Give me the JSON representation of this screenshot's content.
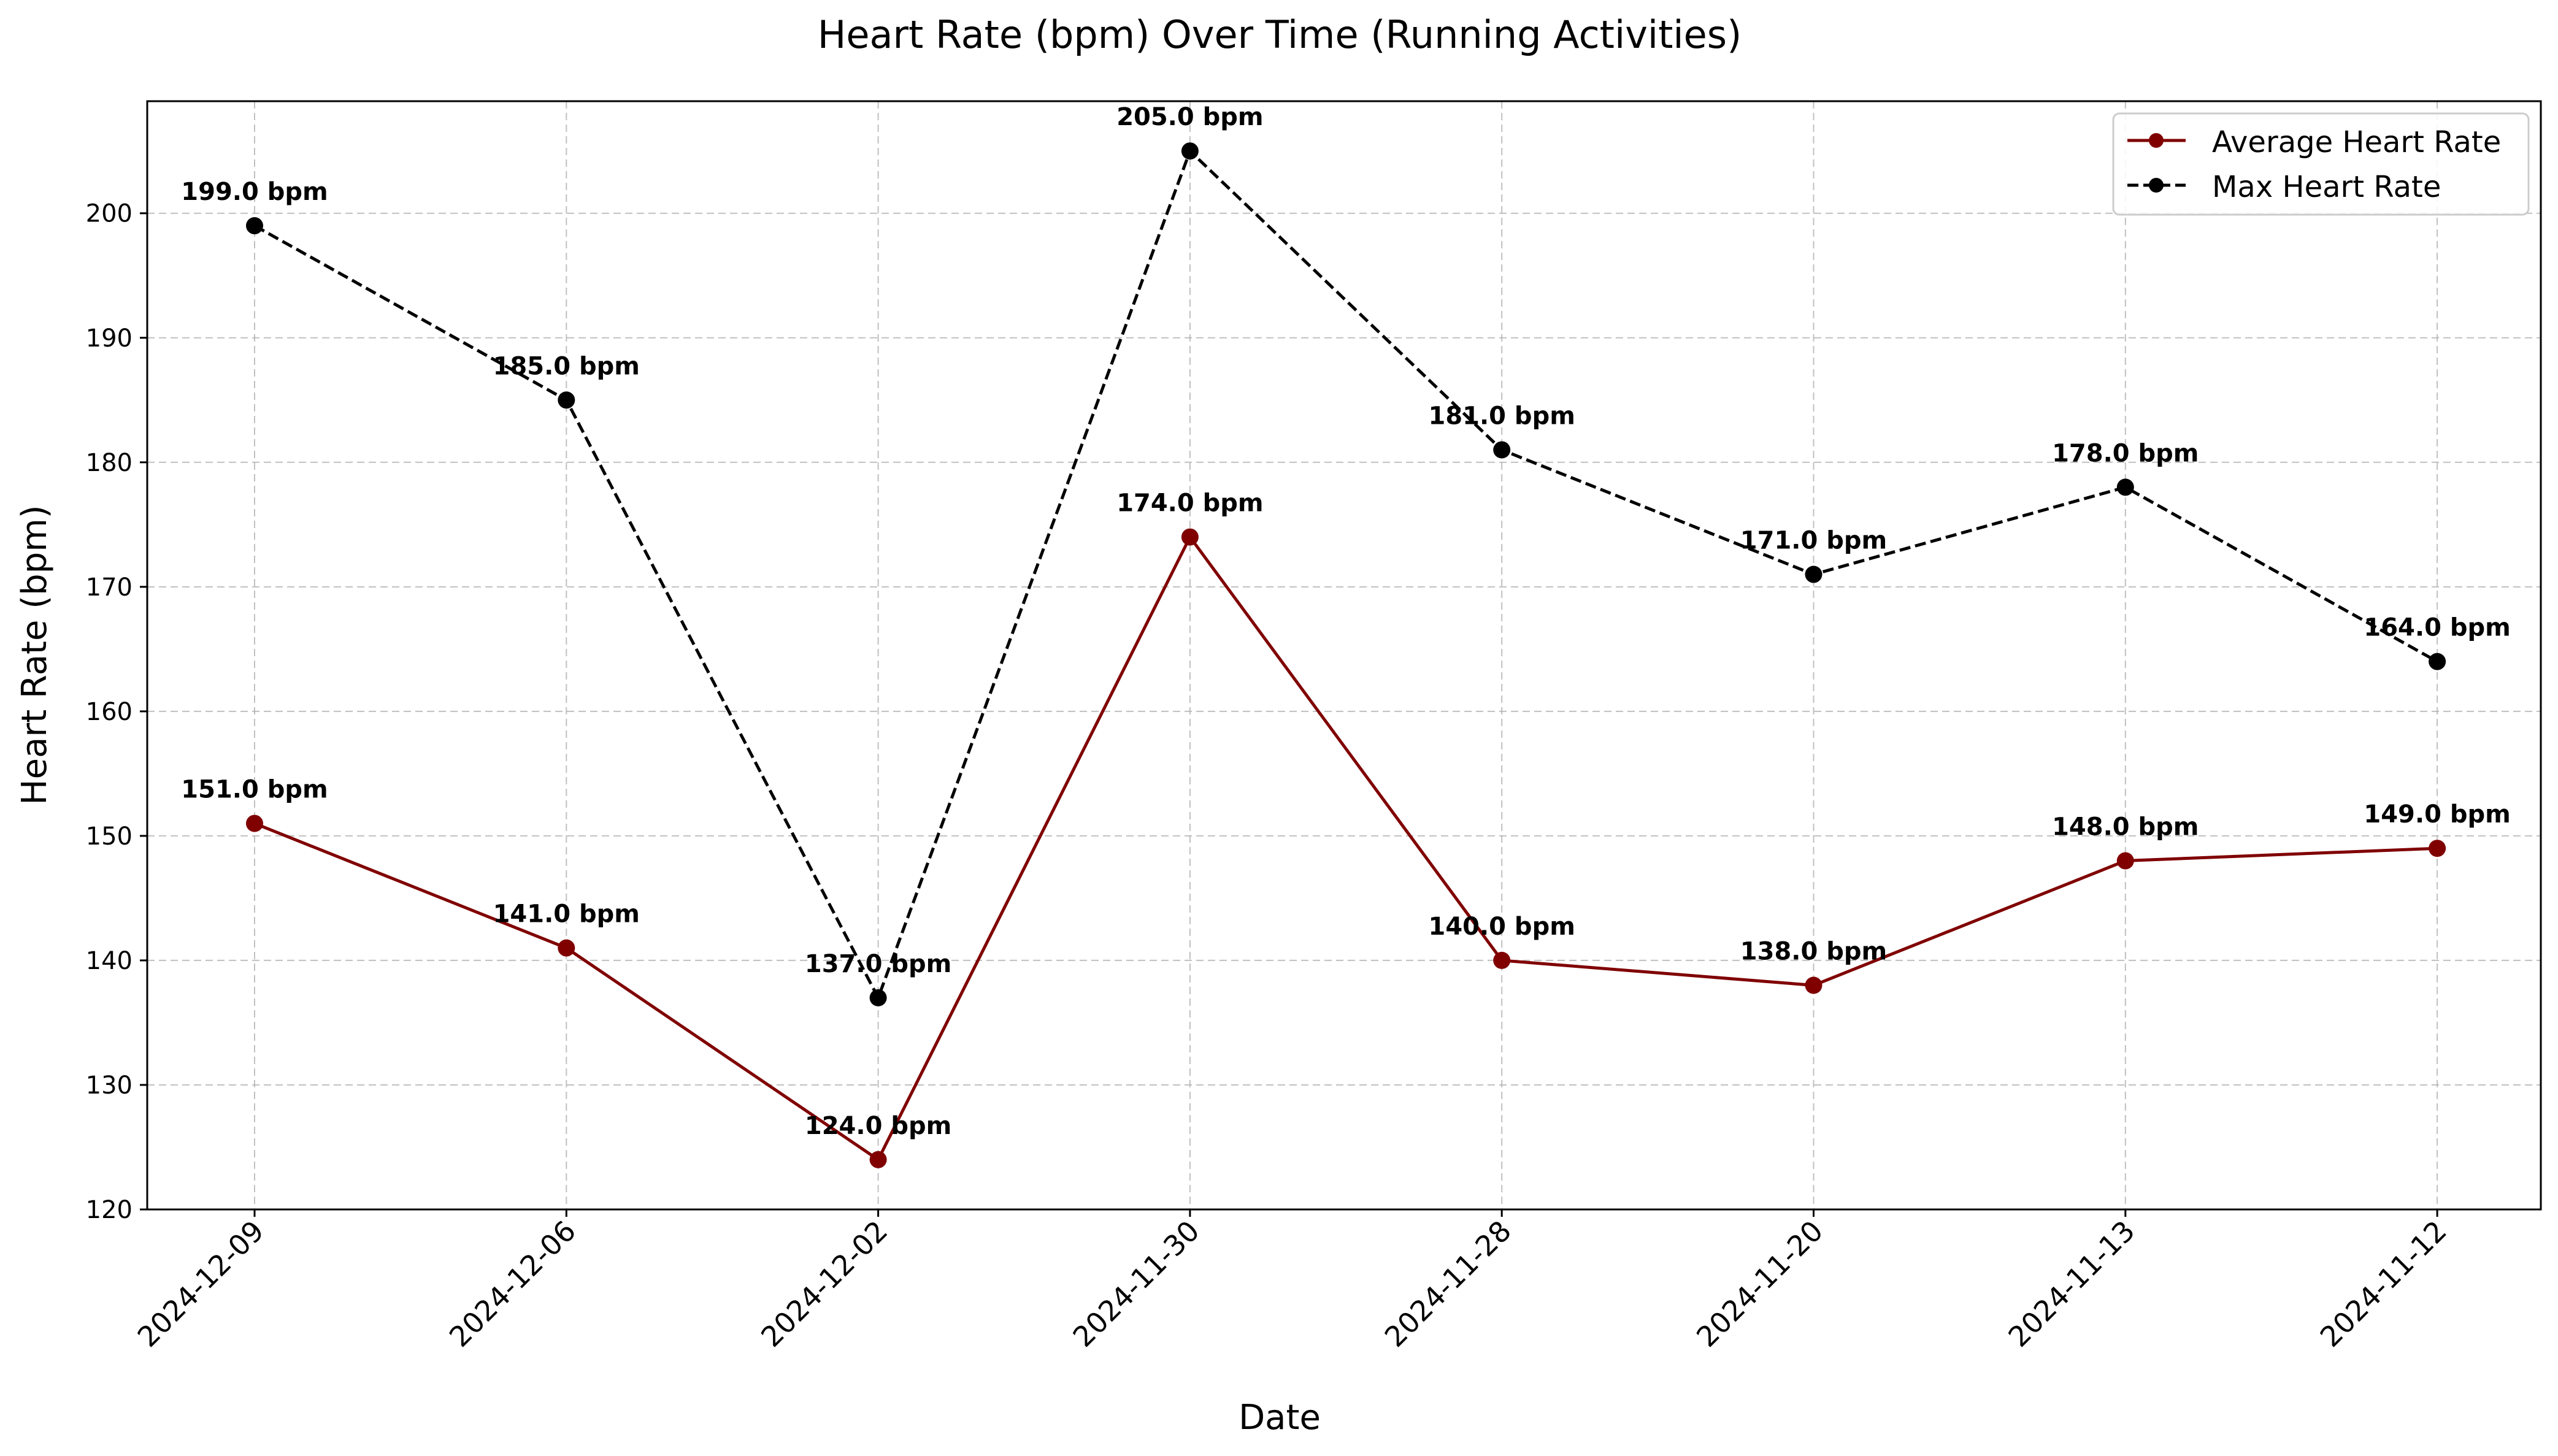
{
  "chart_data": {
    "type": "line",
    "title": "Heart Rate (bpm) Over Time (Running Activities)",
    "xlabel": "Date",
    "ylabel": "Heart Rate (bpm)",
    "categories": [
      "2024-12-09",
      "2024-12-06",
      "2024-12-02",
      "2024-11-30",
      "2024-11-28",
      "2024-11-20",
      "2024-11-13",
      "2024-11-12"
    ],
    "ylim": [
      120,
      209
    ],
    "yticks": [
      120,
      130,
      140,
      150,
      160,
      170,
      180,
      190,
      200
    ],
    "grid": true,
    "legend_position": "top-right",
    "value_suffix": " bpm",
    "series": [
      {
        "name": "Average Heart Rate",
        "values": [
          151,
          141,
          124,
          174,
          140,
          138,
          148,
          149
        ],
        "labels": [
          "151.0 bpm",
          "141.0 bpm",
          "124.0 bpm",
          "174.0 bpm",
          "140.0 bpm",
          "138.0 bpm",
          "148.0 bpm",
          "149.0 bpm"
        ],
        "color": "#800000",
        "line_style": "solid",
        "marker": "circle"
      },
      {
        "name": "Max Heart Rate",
        "values": [
          199,
          185,
          137,
          205,
          181,
          171,
          178,
          164
        ],
        "labels": [
          "199.0 bpm",
          "185.0 bpm",
          "137.0 bpm",
          "205.0 bpm",
          "181.0 bpm",
          "171.0 bpm",
          "178.0 bpm",
          "164.0 bpm"
        ],
        "color": "#000000",
        "line_style": "dashed",
        "marker": "circle"
      }
    ]
  }
}
